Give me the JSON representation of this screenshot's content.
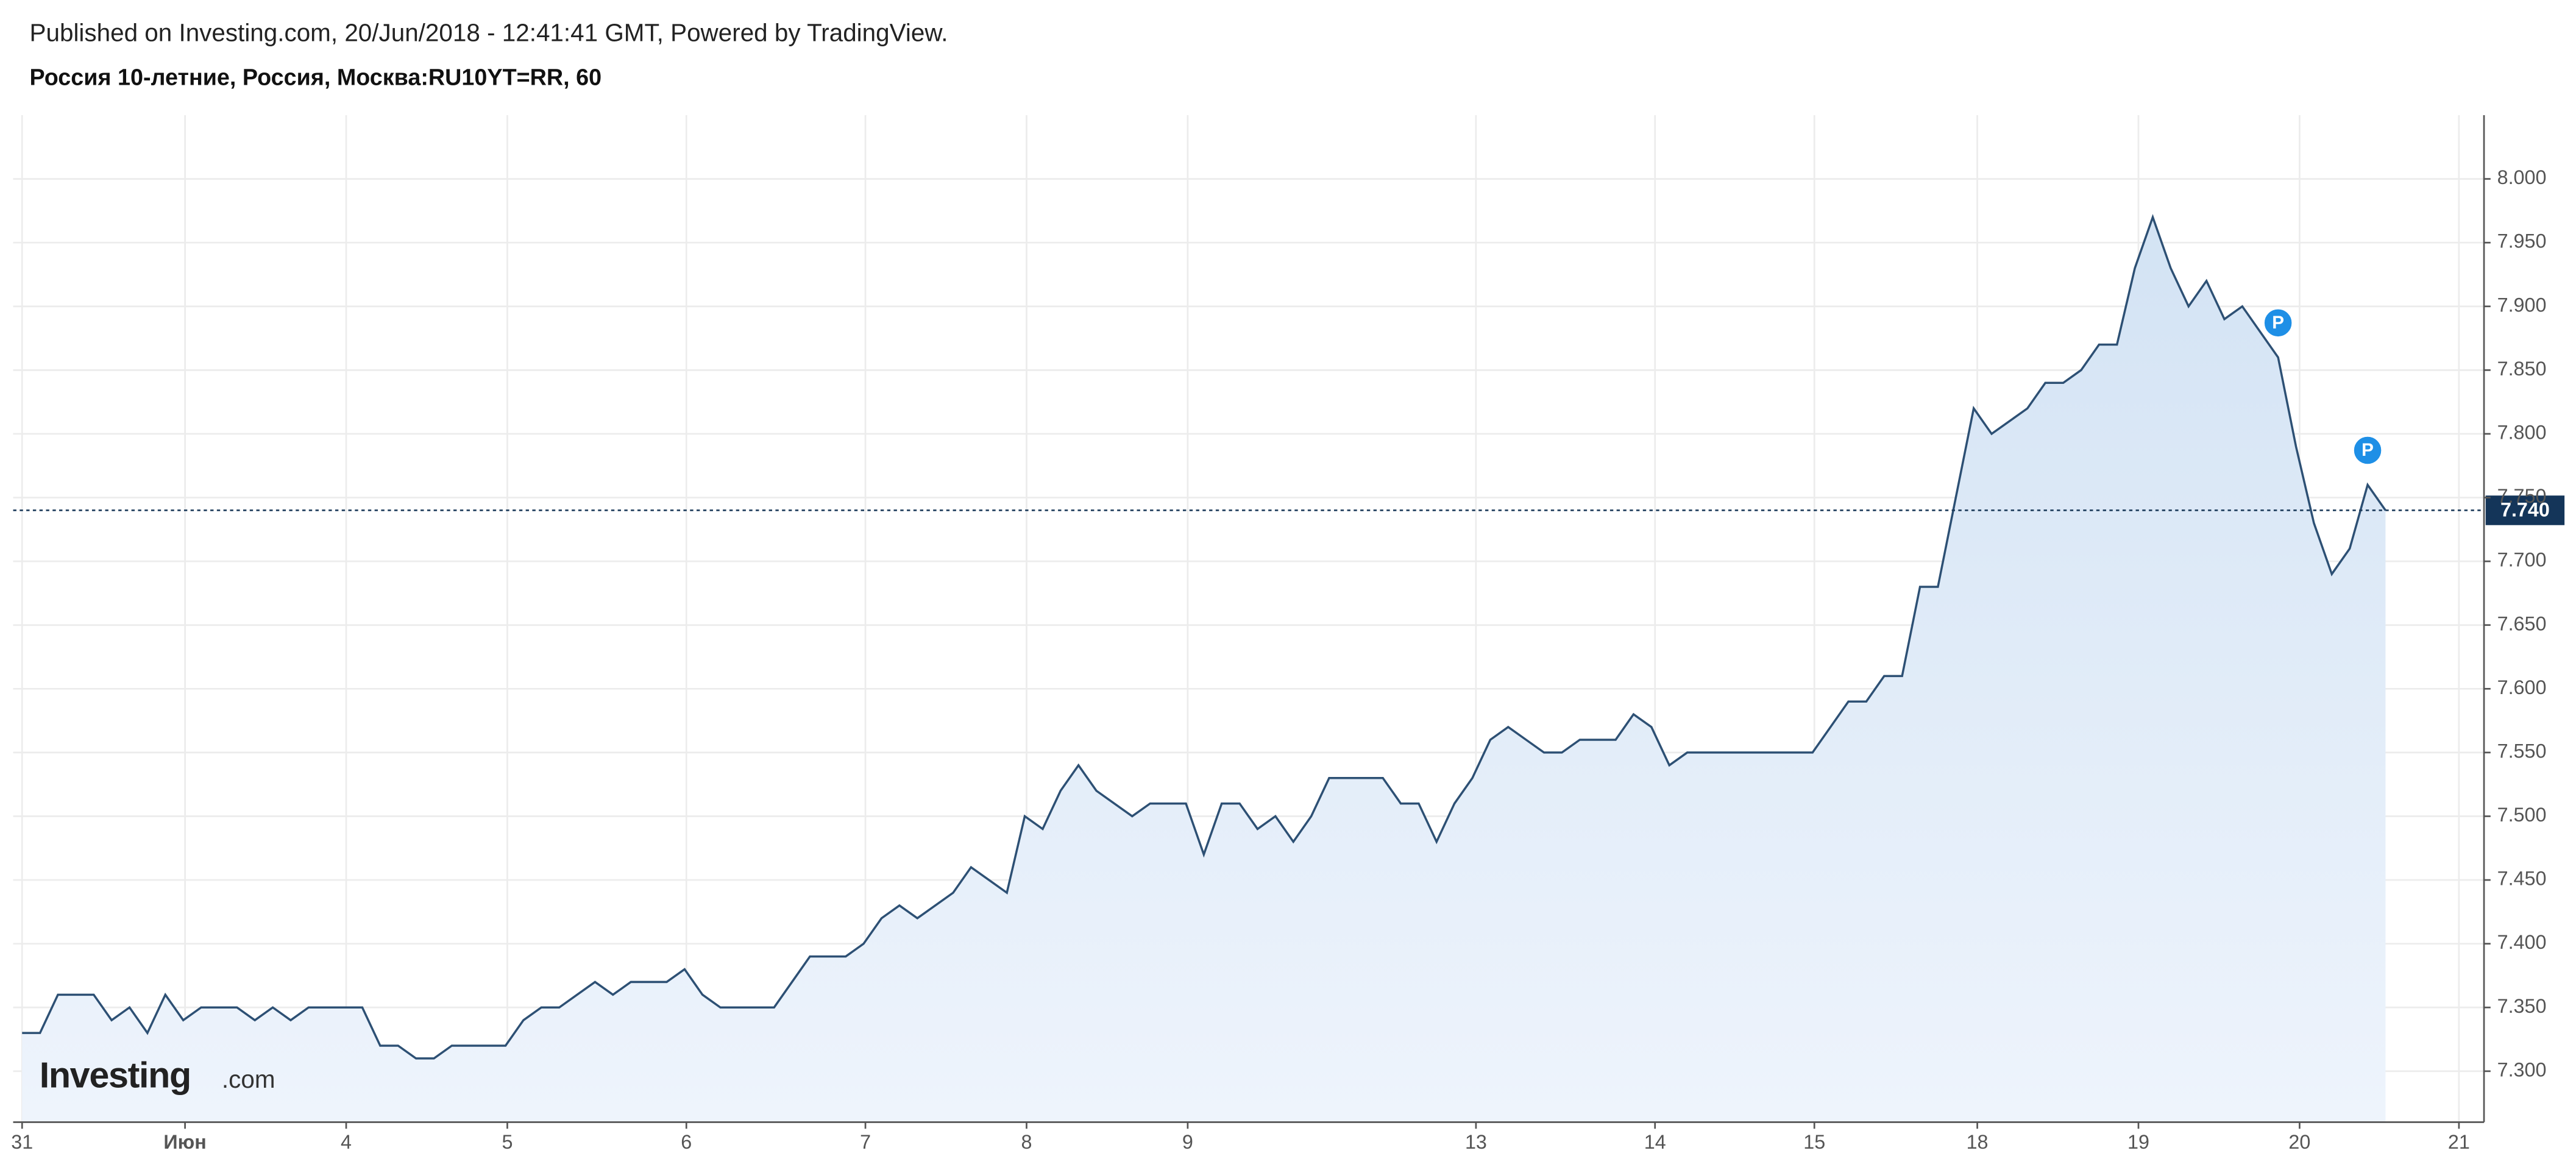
{
  "header": {
    "published": "Published on Investing.com, 20/Jun/2018 - 12:41:41 GMT, Powered by TradingView.",
    "logo": "Investing",
    "logo_suffix": ".com"
  },
  "chart_data": {
    "type": "area",
    "title": "Россия 10-летние, Россия, Москва:RU10YT=RR, 60",
    "color": "#2d5074",
    "fill": "#dce9f7",
    "x": [
      0,
      1,
      2,
      3,
      4,
      5,
      6,
      7,
      8,
      9,
      10,
      11,
      12,
      13,
      14,
      15,
      16,
      17,
      18,
      19,
      20,
      21,
      22,
      23,
      24,
      25,
      26,
      27,
      28,
      29,
      30,
      31,
      32,
      33,
      34,
      35,
      36,
      37,
      38,
      39,
      40,
      41,
      42,
      43,
      44,
      45,
      46,
      47,
      48,
      49,
      50,
      51,
      52,
      53,
      54,
      55,
      56,
      57,
      58,
      59,
      60,
      61,
      62,
      63,
      64,
      65,
      66,
      67,
      68,
      69,
      70,
      71,
      72,
      73,
      74,
      75,
      76,
      77,
      78,
      79,
      80,
      81,
      82,
      83,
      84,
      85,
      86,
      87,
      88,
      89,
      90,
      91,
      92,
      93,
      94,
      95,
      96,
      97,
      98,
      99,
      100,
      101,
      102,
      103,
      104,
      105,
      106,
      107,
      108,
      109,
      110,
      111,
      112,
      113,
      114,
      115,
      116,
      117,
      118,
      119,
      120,
      121,
      122,
      123,
      124,
      125,
      126,
      127,
      128,
      129,
      130,
      131,
      132
    ],
    "values": [
      7.33,
      7.33,
      7.36,
      7.36,
      7.36,
      7.34,
      7.35,
      7.33,
      7.36,
      7.34,
      7.35,
      7.35,
      7.35,
      7.34,
      7.35,
      7.34,
      7.35,
      7.35,
      7.35,
      7.35,
      7.32,
      7.32,
      7.31,
      7.31,
      7.32,
      7.32,
      7.32,
      7.32,
      7.34,
      7.35,
      7.35,
      7.36,
      7.37,
      7.36,
      7.37,
      7.37,
      7.37,
      7.38,
      7.36,
      7.35,
      7.35,
      7.35,
      7.35,
      7.37,
      7.39,
      7.39,
      7.39,
      7.4,
      7.42,
      7.43,
      7.42,
      7.43,
      7.44,
      7.46,
      7.45,
      7.44,
      7.5,
      7.49,
      7.52,
      7.54,
      7.52,
      7.51,
      7.5,
      7.51,
      7.51,
      7.51,
      7.47,
      7.51,
      7.51,
      7.49,
      7.5,
      7.48,
      7.5,
      7.53,
      7.53,
      7.53,
      7.53,
      7.51,
      7.51,
      7.48,
      7.51,
      7.53,
      7.56,
      7.57,
      7.56,
      7.55,
      7.55,
      7.56,
      7.56,
      7.56,
      7.58,
      7.57,
      7.54,
      7.55,
      7.55,
      7.55,
      7.55,
      7.55,
      7.55,
      7.55,
      7.55,
      7.57,
      7.59,
      7.59,
      7.61,
      7.61,
      7.68,
      7.68,
      7.75,
      7.82,
      7.8,
      7.81,
      7.82,
      7.84,
      7.84,
      7.85,
      7.87,
      7.87,
      7.93,
      7.97,
      7.93,
      7.9,
      7.92,
      7.89,
      7.9,
      7.88,
      7.86,
      7.79,
      7.73,
      7.69,
      7.71,
      7.76,
      7.74
    ],
    "xlim": [
      -0.5,
      137.5
    ],
    "xticks": [
      {
        "value": 0,
        "label": "31"
      },
      {
        "value": 9.1,
        "label": "Июн"
      },
      {
        "value": 18.1,
        "label": "4"
      },
      {
        "value": 27.1,
        "label": "5"
      },
      {
        "value": 37.1,
        "label": "6"
      },
      {
        "value": 47.1,
        "label": "7"
      },
      {
        "value": 56.1,
        "label": "8"
      },
      {
        "value": 65.1,
        "label": "9"
      },
      {
        "value": 81.2,
        "label": "13"
      },
      {
        "value": 91.2,
        "label": "14"
      },
      {
        "value": 100.1,
        "label": "15"
      },
      {
        "value": 109.2,
        "label": "18"
      },
      {
        "value": 118.2,
        "label": "19"
      },
      {
        "value": 127.2,
        "label": "20"
      },
      {
        "value": 136.1,
        "label": "21"
      }
    ],
    "ylim": [
      7.26,
      8.05
    ],
    "yticks": [
      {
        "value": 7.3,
        "label": "7.300"
      },
      {
        "value": 7.35,
        "label": "7.350"
      },
      {
        "value": 7.4,
        "label": "7.400"
      },
      {
        "value": 7.45,
        "label": "7.450"
      },
      {
        "value": 7.5,
        "label": "7.500"
      },
      {
        "value": 7.55,
        "label": "7.550"
      },
      {
        "value": 7.6,
        "label": "7.600"
      },
      {
        "value": 7.65,
        "label": "7.650"
      },
      {
        "value": 7.7,
        "label": "7.700"
      },
      {
        "value": 7.75,
        "label": "7.750"
      },
      {
        "value": 7.8,
        "label": "7.800"
      },
      {
        "value": 7.85,
        "label": "7.850"
      },
      {
        "value": 7.9,
        "label": "7.900"
      },
      {
        "value": 7.95,
        "label": "7.950"
      },
      {
        "value": 8.0,
        "label": "8.000"
      }
    ],
    "grid": true,
    "last_value": {
      "value": 7.74,
      "label": "7.740"
    },
    "markers": [
      {
        "x": 126,
        "label": "P"
      },
      {
        "x": 131,
        "label": "P"
      }
    ]
  }
}
